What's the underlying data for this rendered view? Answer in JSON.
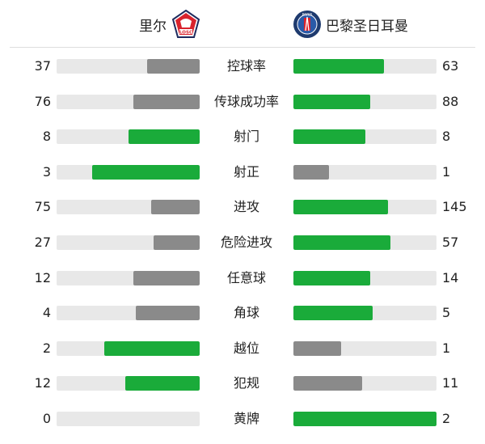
{
  "home": {
    "name": "里尔",
    "logo_text": "LOSC"
  },
  "away": {
    "name": "巴黎圣日耳曼",
    "logo_text": "PARIS"
  },
  "colors": {
    "leader": "#1aab3a",
    "trailer": "#8a8a8a",
    "track": "#e8e8e8"
  },
  "stats": [
    {
      "label": "控球率",
      "home": 37,
      "away": 63
    },
    {
      "label": "传球成功率",
      "home": 76,
      "away": 88
    },
    {
      "label": "射门",
      "home": 8,
      "away": 8
    },
    {
      "label": "射正",
      "home": 3,
      "away": 1
    },
    {
      "label": "进攻",
      "home": 75,
      "away": 145
    },
    {
      "label": "危险进攻",
      "home": 27,
      "away": 57
    },
    {
      "label": "任意球",
      "home": 12,
      "away": 14
    },
    {
      "label": "角球",
      "home": 4,
      "away": 5
    },
    {
      "label": "越位",
      "home": 2,
      "away": 1
    },
    {
      "label": "犯规",
      "home": 12,
      "away": 11
    },
    {
      "label": "黄牌",
      "home": 0,
      "away": 2
    }
  ]
}
